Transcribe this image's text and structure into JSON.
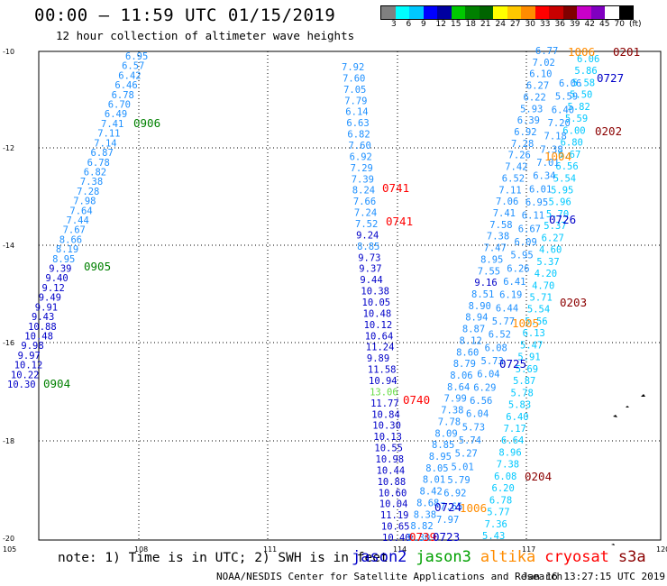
{
  "header": {
    "title": "00:00 – 11:59 UTC 01/15/2019",
    "subtitle": "12 hour collection of altimeter wave heights"
  },
  "color_scale": {
    "colors": [
      "#808080",
      "#00ffff",
      "#00c8ff",
      "#0000ff",
      "#0000a0",
      "#00c800",
      "#008000",
      "#006400",
      "#ffff00",
      "#ffc800",
      "#ff8c00",
      "#ff0000",
      "#c80000",
      "#800000",
      "#c800c8",
      "#8000c0",
      "#ffffff",
      "#000000"
    ],
    "labels": [
      "3",
      "6",
      "9",
      "12",
      "15",
      "18",
      "21",
      "24",
      "27",
      "30",
      "33",
      "36",
      "39",
      "42",
      "45",
      "70",
      "(ft)"
    ]
  },
  "axes": {
    "x_ticks": [
      "105",
      "108",
      "111",
      "114",
      "117",
      "120"
    ],
    "y_ticks": [
      "-10",
      "-12",
      "-14",
      "-16",
      "-18",
      "-20"
    ]
  },
  "tracks": [
    {
      "values": [
        "6.95",
        "6.57",
        "6.42",
        "6.46",
        "6.78",
        "6.70",
        "6.49",
        "7.41",
        "7.11",
        "7.14",
        "6.87",
        "6.78",
        "6.82",
        "7.38",
        "7.28",
        "7.98",
        "7.64",
        "7.44",
        "7.67",
        "8.66",
        "8.19",
        "8.95",
        "9.39",
        "9.40",
        "9.12",
        "9.49",
        "9.91",
        "9.43",
        "10.88",
        "10.48",
        "9.98",
        "9.97",
        "10.12",
        "10.22",
        "10.30"
      ],
      "colors": [
        "#1e90ff",
        "#1e90ff",
        "#1e90ff",
        "#1e90ff",
        "#1e90ff",
        "#1e90ff",
        "#1e90ff",
        "#1e90ff",
        "#1e90ff",
        "#1e90ff",
        "#1e90ff",
        "#1e90ff",
        "#1e90ff",
        "#1e90ff",
        "#1e90ff",
        "#1e90ff",
        "#1e90ff",
        "#1e90ff",
        "#1e90ff",
        "#1e90ff",
        "#1e90ff",
        "#1e90ff",
        "#0000c8",
        "#0000c8",
        "#0000c8",
        "#0000c8",
        "#0000c8",
        "#0000c8",
        "#0000c8",
        "#0000c8",
        "#0000c8",
        "#0000c8",
        "#0000c8",
        "#0000c8",
        "#0000c8"
      ]
    },
    {
      "values": [
        "7.92",
        "7.60",
        "7.05",
        "7.79",
        "6.14",
        "6.63",
        "6.82",
        "7.60",
        "6.92",
        "7.29",
        "7.39",
        "8.24",
        "7.66",
        "7.24",
        "7.52",
        "9.24",
        "8.85",
        "9.73",
        "9.37",
        "9.44",
        "10.38",
        "10.05",
        "10.48",
        "10.12",
        "10.64",
        "11.24",
        "9.89",
        "11.58",
        "10.94",
        "13.06",
        "11.77",
        "10.84",
        "10.30",
        "10.13",
        "10.55",
        "10.98",
        "10.44",
        "10.88",
        "10.60",
        "10.04",
        "11.19",
        "10.65",
        "10.40"
      ],
      "colors": [
        "#1e90ff",
        "#1e90ff",
        "#1e90ff",
        "#1e90ff",
        "#1e90ff",
        "#1e90ff",
        "#1e90ff",
        "#1e90ff",
        "#1e90ff",
        "#1e90ff",
        "#1e90ff",
        "#1e90ff",
        "#1e90ff",
        "#1e90ff",
        "#1e90ff",
        "#0000c8",
        "#1e90ff",
        "#0000c8",
        "#0000c8",
        "#0000c8",
        "#0000c8",
        "#0000c8",
        "#0000c8",
        "#0000c8",
        "#0000c8",
        "#0000c8",
        "#0000c8",
        "#0000c8",
        "#0000c8",
        "#66dd44",
        "#0000c8",
        "#0000c8",
        "#0000c8",
        "#0000c8",
        "#0000c8",
        "#0000c8",
        "#0000c8",
        "#0000c8",
        "#0000c8",
        "#0000c8",
        "#0000c8",
        "#0000c8",
        "#0000c8"
      ]
    },
    {
      "values": [
        "6.77",
        "7.02",
        "6.10",
        "6.27",
        "6.22",
        "5.93",
        "6.39",
        "6.92",
        "7.28",
        "7.26",
        "7.42",
        "6.52",
        "7.11",
        "7.06",
        "7.41",
        "7.58",
        "7.38",
        "7.47",
        "8.95",
        "7.55",
        "9.16",
        "8.51",
        "8.90",
        "8.94",
        "8.87",
        "8.12",
        "8.60",
        "8.79",
        "8.06",
        "8.64",
        "7.99",
        "7.38",
        "7.78",
        "8.09",
        "8.85",
        "8.95",
        "8.05",
        "8.01",
        "8.42",
        "8.68",
        "8.38",
        "8.82",
        "9.30"
      ],
      "colors": [
        "#1e90ff",
        "#1e90ff",
        "#1e90ff",
        "#1e90ff",
        "#1e90ff",
        "#1e90ff",
        "#1e90ff",
        "#1e90ff",
        "#1e90ff",
        "#1e90ff",
        "#1e90ff",
        "#1e90ff",
        "#1e90ff",
        "#1e90ff",
        "#1e90ff",
        "#1e90ff",
        "#1e90ff",
        "#1e90ff",
        "#1e90ff",
        "#1e90ff",
        "#0000c8",
        "#1e90ff",
        "#1e90ff",
        "#1e90ff",
        "#1e90ff",
        "#1e90ff",
        "#1e90ff",
        "#1e90ff",
        "#1e90ff",
        "#1e90ff",
        "#1e90ff",
        "#1e90ff",
        "#1e90ff",
        "#1e90ff",
        "#1e90ff",
        "#1e90ff",
        "#1e90ff",
        "#1e90ff",
        "#1e90ff",
        "#1e90ff",
        "#1e90ff",
        "#1e90ff",
        "#1e90ff"
      ]
    },
    {
      "values": [
        "6.06",
        "5.86",
        "5.58",
        "5.50",
        "5.82",
        "5.59",
        "6.00",
        "6.80",
        "6.67",
        "6.56",
        "5.54",
        "5.95",
        "5.96",
        "5.70",
        "5.37",
        "6.27",
        "4.60",
        "5.37",
        "4.20",
        "4.70",
        "5.71",
        "5.54",
        "5.56",
        "6.13",
        "5.47",
        "5.91",
        "5.69",
        "5.87",
        "5.78",
        "5.83",
        "6.40",
        "7.17",
        "6.64",
        "8.96",
        "7.38",
        "6.08",
        "6.20",
        "6.78",
        "5.77",
        "7.36",
        "5.43"
      ],
      "colors": [
        "#00c8ff",
        "#00c8ff",
        "#00c8ff",
        "#00c8ff",
        "#00c8ff",
        "#00c8ff",
        "#00c8ff",
        "#00c8ff",
        "#00c8ff",
        "#00c8ff",
        "#00c8ff",
        "#00c8ff",
        "#00c8ff",
        "#00c8ff",
        "#00c8ff",
        "#00c8ff",
        "#00c8ff",
        "#00c8ff",
        "#00c8ff",
        "#00c8ff",
        "#00c8ff",
        "#00c8ff",
        "#00c8ff",
        "#00c8ff",
        "#00c8ff",
        "#00c8ff",
        "#00c8ff",
        "#00c8ff",
        "#00c8ff",
        "#00c8ff",
        "#00c8ff",
        "#00c8ff",
        "#00c8ff",
        "#00c8ff",
        "#00c8ff",
        "#00c8ff",
        "#00c8ff",
        "#00c8ff",
        "#00c8ff",
        "#00c8ff",
        "#00c8ff"
      ]
    },
    {
      "values": [
        "6.06",
        "5.59",
        "6.40",
        "7.20",
        "7.18",
        "7.38",
        "7.01",
        "6.34",
        "6.01",
        "6.95",
        "6.11",
        "6.67",
        "6.09",
        "5.95",
        "6.26",
        "6.41",
        "6.19",
        "6.44",
        "5.77",
        "6.52",
        "6.08",
        "5.73",
        "6.04",
        "6.29",
        "6.56",
        "6.04",
        "5.73",
        "5.74",
        "5.27",
        "5.01",
        "5.79",
        "6.92",
        "7.65",
        "7.97"
      ],
      "colors": [
        "#1e90ff",
        "#1e90ff",
        "#1e90ff",
        "#1e90ff",
        "#1e90ff",
        "#1e90ff",
        "#1e90ff",
        "#1e90ff",
        "#1e90ff",
        "#1e90ff",
        "#1e90ff",
        "#1e90ff",
        "#1e90ff",
        "#1e90ff",
        "#1e90ff",
        "#1e90ff",
        "#1e90ff",
        "#1e90ff",
        "#1e90ff",
        "#1e90ff",
        "#1e90ff",
        "#1e90ff",
        "#1e90ff",
        "#1e90ff",
        "#1e90ff",
        "#1e90ff",
        "#1e90ff",
        "#1e90ff",
        "#1e90ff",
        "#1e90ff",
        "#1e90ff",
        "#1e90ff",
        "#1e90ff",
        "#1e90ff"
      ]
    }
  ],
  "pass_labels": [
    {
      "text": "0906",
      "color": "#008000"
    },
    {
      "text": "0905",
      "color": "#008000"
    },
    {
      "text": "0904",
      "color": "#008000"
    },
    {
      "text": "0741",
      "color": "#ff0000"
    },
    {
      "text": "0741",
      "color": "#ff0000"
    },
    {
      "text": "0740",
      "color": "#ff0000"
    },
    {
      "text": "0739",
      "color": "#ff0000"
    },
    {
      "text": "0723",
      "color": "#0000c8"
    },
    {
      "text": "0724",
      "color": "#0000c8"
    },
    {
      "text": "0725",
      "color": "#0000c8"
    },
    {
      "text": "0726",
      "color": "#0000c8"
    },
    {
      "text": "0727",
      "color": "#0000c8"
    },
    {
      "text": "0201",
      "color": "#8b0000"
    },
    {
      "text": "0202",
      "color": "#8b0000"
    },
    {
      "text": "0203",
      "color": "#8b0000"
    },
    {
      "text": "0204",
      "color": "#8b0000"
    },
    {
      "text": "1006",
      "color": "#ff8c00"
    },
    {
      "text": "1005",
      "color": "#ff8c00"
    },
    {
      "text": "1004",
      "color": "#ff8c00"
    },
    {
      "text": "1006",
      "color": "#ff8c00"
    }
  ],
  "footer": {
    "note": "note: 1) Time is in UTC; 2) SWH is in feet",
    "legend": [
      {
        "name": "jason2",
        "color": "#0000c8"
      },
      {
        "name": "jason3",
        "color": "#00a000"
      },
      {
        "name": "altika",
        "color": "#ff8c00"
      },
      {
        "name": "cryosat",
        "color": "#ff0000"
      },
      {
        "name": "s3a",
        "color": "#8b0000"
      }
    ],
    "credit": "NOAA/NESDIS Center for Satellite Applications and Research",
    "timestamp": "Jan 16 13:27:15 UTC 2019"
  }
}
